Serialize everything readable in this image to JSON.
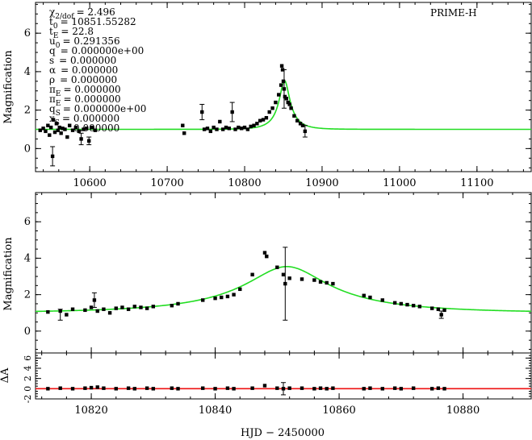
{
  "chart_data": [
    {
      "type": "scatter",
      "panel": "top",
      "label": "PRIME-H",
      "xlim": [
        10530,
        11170
      ],
      "ylim": [
        -1.2,
        7.6
      ],
      "x_ticks": [
        10600,
        10700,
        10800,
        10900,
        11000,
        11100
      ],
      "y_ticks": [
        0,
        2,
        4,
        6
      ],
      "ylabel": "Magnification",
      "fit_params": [
        {
          "sym": "χ",
          "sub": "2/dof",
          "val": "= 2.496"
        },
        {
          "sym": "t",
          "sub": "0",
          "val": "= 10851.55282"
        },
        {
          "sym": "t",
          "sub": "E",
          "val": "= 22.8"
        },
        {
          "sym": "u",
          "sub": "0",
          "val": "= 0.291356"
        },
        {
          "sym": "q",
          "sub": "",
          "val": "= 0.000000e+00"
        },
        {
          "sym": "s",
          "sub": "",
          "val": "= 0.000000"
        },
        {
          "sym": "α",
          "sub": "",
          "val": "= 0.000000"
        },
        {
          "sym": "ρ",
          "sub": "",
          "val": "= 0.000000"
        },
        {
          "sym": "π",
          "sub": "E",
          "val": "= 0.000000"
        },
        {
          "sym": "π",
          "sub": "E",
          "val": "= 0.000000"
        },
        {
          "sym": "q",
          "sub": "S",
          "val": "= 0.000000e+00"
        },
        {
          "sym": "x",
          "sub": "S",
          "val": "= 0.000000"
        },
        {
          "sym": "",
          "sub": "",
          "val": "0.000000"
        }
      ],
      "model": {
        "t0": 10851.55,
        "tE": 22.8,
        "u0": 0.291356,
        "color": "#22dd22"
      },
      "points": [
        [
          10536,
          0.95
        ],
        [
          10540,
          1.05
        ],
        [
          10543,
          0.9
        ],
        [
          10546,
          1.2
        ],
        [
          10548,
          0.7
        ],
        [
          10550,
          1.1
        ],
        [
          10552,
          -0.4
        ],
        [
          10553,
          1.5
        ],
        [
          10555,
          0.85
        ],
        [
          10557,
          1.3
        ],
        [
          10559,
          0.95
        ],
        [
          10561,
          1.1
        ],
        [
          10563,
          0.8
        ],
        [
          10565,
          1.05
        ],
        [
          10568,
          1.0
        ],
        [
          10571,
          0.6
        ],
        [
          10574,
          1.2
        ],
        [
          10578,
          0.95
        ],
        [
          10582,
          1.1
        ],
        [
          10586,
          0.9
        ],
        [
          10589,
          0.5
        ],
        [
          10592,
          1.0
        ],
        [
          10596,
          1.05
        ],
        [
          10599,
          0.4
        ],
        [
          10603,
          1.1
        ],
        [
          10607,
          0.95
        ],
        [
          10720,
          1.2
        ],
        [
          10722,
          0.8
        ],
        [
          10745,
          1.9
        ],
        [
          10748,
          1.0
        ],
        [
          10752,
          1.05
        ],
        [
          10756,
          0.9
        ],
        [
          10760,
          1.1
        ],
        [
          10764,
          1.0
        ],
        [
          10768,
          1.4
        ],
        [
          10772,
          1.0
        ],
        [
          10776,
          1.1
        ],
        [
          10780,
          1.05
        ],
        [
          10784,
          1.9
        ],
        [
          10788,
          1.0
        ],
        [
          10792,
          1.1
        ],
        [
          10796,
          1.05
        ],
        [
          10800,
          1.1
        ],
        [
          10804,
          1.0
        ],
        [
          10808,
          1.15
        ],
        [
          10812,
          1.2
        ],
        [
          10816,
          1.3
        ],
        [
          10820,
          1.45
        ],
        [
          10824,
          1.5
        ],
        [
          10828,
          1.6
        ],
        [
          10832,
          1.9
        ],
        [
          10836,
          2.1
        ],
        [
          10840,
          2.4
        ],
        [
          10844,
          2.8
        ],
        [
          10847,
          3.3
        ],
        [
          10848,
          4.3
        ],
        [
          10849,
          4.1
        ],
        [
          10850,
          3.5
        ],
        [
          10851,
          3.1
        ],
        [
          10852,
          2.7
        ],
        [
          10854,
          2.6
        ],
        [
          10856,
          2.4
        ],
        [
          10858,
          2.3
        ],
        [
          10860,
          2.1
        ],
        [
          10864,
          1.7
        ],
        [
          10868,
          1.45
        ],
        [
          10872,
          1.3
        ],
        [
          10875,
          1.2
        ],
        [
          10878,
          0.9
        ]
      ],
      "errorbars": [
        [
          10552,
          -0.4,
          0.5
        ],
        [
          10589,
          0.5,
          0.3
        ],
        [
          10599,
          0.4,
          0.2
        ],
        [
          10745,
          1.9,
          0.4
        ],
        [
          10784,
          1.9,
          0.5
        ],
        [
          10851,
          3.1,
          1.0
        ],
        [
          10878,
          0.9,
          0.3
        ]
      ]
    },
    {
      "type": "scatter",
      "panel": "middle",
      "xlim": [
        10811,
        10891
      ],
      "ylim": [
        -1.2,
        7.6
      ],
      "x_ticks": [
        10820,
        10840,
        10860,
        10880
      ],
      "y_ticks": [
        0,
        2,
        4,
        6
      ],
      "ylabel": "Magnification",
      "model": {
        "t0": 10851.55,
        "tE": 22.8,
        "u0": 0.291356,
        "color": "#22dd22"
      },
      "points": [
        [
          10813,
          1.05
        ],
        [
          10815,
          1.1
        ],
        [
          10816,
          0.9
        ],
        [
          10817,
          1.2
        ],
        [
          10819,
          1.15
        ],
        [
          10820,
          1.3
        ],
        [
          10820.5,
          1.7
        ],
        [
          10821,
          1.1
        ],
        [
          10822,
          1.2
        ],
        [
          10823,
          1.0
        ],
        [
          10824,
          1.25
        ],
        [
          10825,
          1.3
        ],
        [
          10826,
          1.2
        ],
        [
          10827,
          1.35
        ],
        [
          10828,
          1.3
        ],
        [
          10829,
          1.25
        ],
        [
          10830,
          1.35
        ],
        [
          10833,
          1.4
        ],
        [
          10834,
          1.5
        ],
        [
          10838,
          1.7
        ],
        [
          10840,
          1.8
        ],
        [
          10841,
          1.85
        ],
        [
          10842,
          1.9
        ],
        [
          10843,
          2.0
        ],
        [
          10844,
          2.3
        ],
        [
          10846,
          3.1
        ],
        [
          10848,
          4.3
        ],
        [
          10848.3,
          4.1
        ],
        [
          10850,
          3.5
        ],
        [
          10851,
          3.1
        ],
        [
          10851.3,
          2.6
        ],
        [
          10852,
          2.9
        ],
        [
          10854,
          2.85
        ],
        [
          10856,
          2.8
        ],
        [
          10857,
          2.7
        ],
        [
          10858,
          2.65
        ],
        [
          10859,
          2.6
        ],
        [
          10864,
          1.95
        ],
        [
          10865,
          1.85
        ],
        [
          10867,
          1.7
        ],
        [
          10869,
          1.55
        ],
        [
          10870,
          1.5
        ],
        [
          10871,
          1.45
        ],
        [
          10872,
          1.4
        ],
        [
          10873,
          1.35
        ],
        [
          10875,
          1.25
        ],
        [
          10876,
          1.2
        ],
        [
          10876.5,
          0.9
        ],
        [
          10877,
          1.15
        ]
      ],
      "errorbars": [
        [
          10815,
          0.9,
          0.3
        ],
        [
          10820.5,
          1.7,
          0.4
        ],
        [
          10851.3,
          2.6,
          2.0
        ],
        [
          10876.5,
          0.9,
          0.2
        ]
      ]
    },
    {
      "type": "scatter",
      "panel": "residual",
      "xlim": [
        10811,
        10891
      ],
      "ylim": [
        -2.0,
        7.0
      ],
      "x_ticks": [
        10820,
        10840,
        10860,
        10880
      ],
      "y_ticks": [
        -2,
        0,
        2,
        4,
        6
      ],
      "y_tick_labels": [
        "-2",
        "0",
        "2",
        "4",
        "6"
      ],
      "ylabel": "ΔA",
      "xlabel": "HJD − 2450000",
      "zero_line_color": "#ee1111",
      "points": [
        [
          10813,
          0.0
        ],
        [
          10815,
          0.1
        ],
        [
          10817,
          0.0
        ],
        [
          10819,
          0.1
        ],
        [
          10820,
          0.2
        ],
        [
          10821,
          0.3
        ],
        [
          10822,
          0.1
        ],
        [
          10824,
          0.0
        ],
        [
          10826,
          0.1
        ],
        [
          10827,
          0.0
        ],
        [
          10829,
          0.1
        ],
        [
          10830,
          0.0
        ],
        [
          10833,
          0.1
        ],
        [
          10834,
          0.0
        ],
        [
          10838,
          0.1
        ],
        [
          10840,
          0.0
        ],
        [
          10842,
          0.1
        ],
        [
          10843,
          0.0
        ],
        [
          10846,
          0.1
        ],
        [
          10848,
          0.6
        ],
        [
          10850,
          0.1
        ],
        [
          10851,
          0.0
        ],
        [
          10852,
          0.1
        ],
        [
          10854,
          0.1
        ],
        [
          10856,
          0.0
        ],
        [
          10857,
          0.1
        ],
        [
          10858,
          0.0
        ],
        [
          10859,
          0.1
        ],
        [
          10864,
          0.0
        ],
        [
          10865,
          0.1
        ],
        [
          10867,
          0.0
        ],
        [
          10869,
          0.1
        ],
        [
          10870,
          0.0
        ],
        [
          10872,
          0.1
        ],
        [
          10875,
          0.0
        ],
        [
          10876,
          0.1
        ],
        [
          10877,
          0.0
        ]
      ],
      "errorbars": [
        [
          10851,
          0.0,
          1.2
        ]
      ]
    }
  ]
}
